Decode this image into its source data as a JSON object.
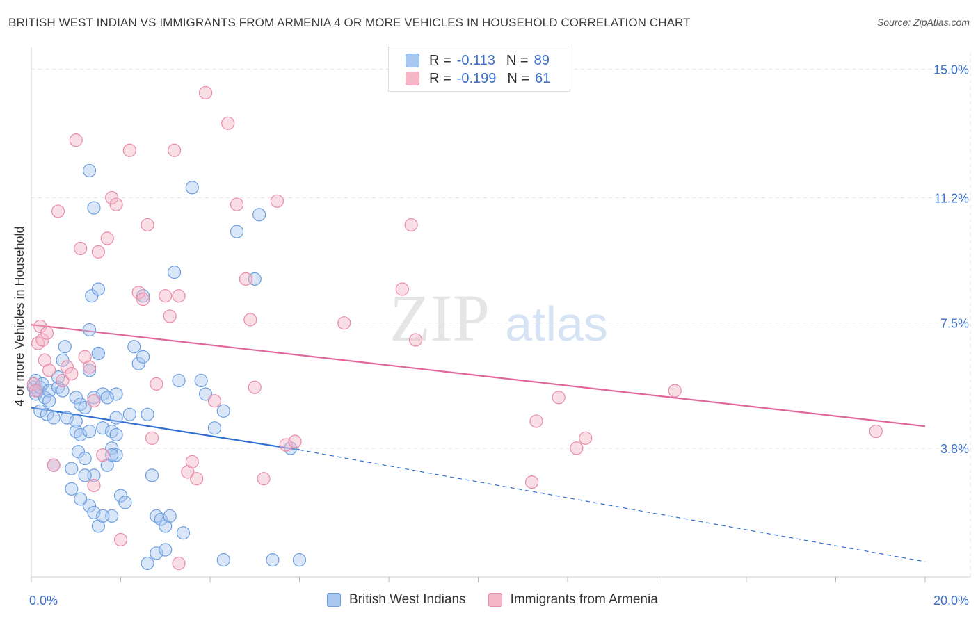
{
  "title": "BRITISH WEST INDIAN VS IMMIGRANTS FROM ARMENIA 4 OR MORE VEHICLES IN HOUSEHOLD CORRELATION CHART",
  "source": "Source: ZipAtlas.com",
  "watermark": {
    "zip": "ZIP",
    "atlas": "atlas"
  },
  "legend": {
    "r_label": "R =",
    "n_label": "N =",
    "series": [
      {
        "r": "-0.113",
        "n": "89"
      },
      {
        "r": "-0.199",
        "n": "61"
      }
    ]
  },
  "colors": {
    "blue_fill": "#a8c8f0",
    "blue_stroke": "#6b9ee0",
    "blue_line": "#2f6fd1",
    "pink_fill": "#f5b6c8",
    "pink_stroke": "#e98aa8",
    "pink_line": "#e0679a",
    "tick_label": "#3a70c9",
    "grid": "#e3e3e3"
  },
  "chart_data": {
    "type": "scatter",
    "title": "BRITISH WEST INDIAN VS IMMIGRANTS FROM ARMENIA 4 OR MORE VEHICLES IN HOUSEHOLD CORRELATION CHART",
    "xlabel": "",
    "ylabel": "4 or more Vehicles in Household",
    "xlim": [
      0,
      20
    ],
    "ylim": [
      0,
      15.5
    ],
    "x_tick_labels": [
      "0.0%",
      "20.0%"
    ],
    "y_ticks": [
      3.8,
      7.5,
      11.2,
      15.0
    ],
    "y_tick_labels": [
      "3.8%",
      "7.5%",
      "11.2%",
      "15.0%"
    ],
    "legend_position": "top-center",
    "series": [
      {
        "name": "British West Indians",
        "r": -0.113,
        "n": 89,
        "trend": {
          "x0": 0,
          "y0": 5.0,
          "x1": 6.0,
          "y1": 3.75,
          "dashed_to_x": 20,
          "dashed_to_y": 0.45
        },
        "points": [
          [
            0.05,
            5.6
          ],
          [
            0.1,
            5.4
          ],
          [
            0.1,
            5.8
          ],
          [
            0.15,
            5.5
          ],
          [
            0.2,
            4.9
          ],
          [
            0.2,
            5.6
          ],
          [
            0.25,
            5.7
          ],
          [
            0.3,
            5.3
          ],
          [
            0.35,
            4.8
          ],
          [
            0.4,
            5.5
          ],
          [
            0.4,
            5.2
          ],
          [
            0.5,
            4.7
          ],
          [
            0.6,
            5.6
          ],
          [
            0.6,
            5.9
          ],
          [
            0.7,
            5.5
          ],
          [
            0.7,
            6.4
          ],
          [
            0.75,
            6.8
          ],
          [
            0.5,
            3.3
          ],
          [
            0.8,
            4.7
          ],
          [
            0.9,
            3.2
          ],
          [
            0.9,
            2.6
          ],
          [
            1.0,
            5.3
          ],
          [
            1.0,
            4.3
          ],
          [
            1.0,
            4.6
          ],
          [
            1.05,
            3.7
          ],
          [
            1.1,
            4.2
          ],
          [
            1.1,
            5.1
          ],
          [
            1.2,
            5.0
          ],
          [
            1.2,
            3.5
          ],
          [
            1.3,
            4.3
          ],
          [
            1.3,
            6.1
          ],
          [
            1.3,
            7.3
          ],
          [
            1.4,
            3.0
          ],
          [
            1.4,
            5.3
          ],
          [
            1.5,
            6.6
          ],
          [
            1.6,
            4.4
          ],
          [
            1.7,
            3.3
          ],
          [
            1.8,
            4.3
          ],
          [
            1.8,
            1.8
          ],
          [
            1.8,
            3.8
          ],
          [
            1.9,
            3.6
          ],
          [
            1.9,
            5.4
          ],
          [
            1.2,
            3.0
          ],
          [
            1.3,
            2.1
          ],
          [
            1.4,
            1.9
          ],
          [
            1.5,
            1.5
          ],
          [
            1.6,
            1.8
          ],
          [
            1.1,
            2.3
          ],
          [
            1.3,
            12.0
          ],
          [
            1.4,
            10.9
          ],
          [
            1.35,
            8.3
          ],
          [
            1.5,
            8.5
          ],
          [
            1.5,
            6.6
          ],
          [
            1.6,
            5.4
          ],
          [
            1.7,
            5.3
          ],
          [
            1.9,
            4.2
          ],
          [
            1.8,
            3.6
          ],
          [
            1.9,
            4.7
          ],
          [
            2.0,
            2.4
          ],
          [
            2.1,
            2.2
          ],
          [
            2.2,
            4.8
          ],
          [
            2.3,
            6.8
          ],
          [
            2.4,
            6.3
          ],
          [
            2.5,
            8.3
          ],
          [
            2.5,
            6.5
          ],
          [
            2.6,
            4.8
          ],
          [
            2.7,
            3.0
          ],
          [
            2.8,
            1.8
          ],
          [
            2.9,
            1.7
          ],
          [
            3.0,
            1.5
          ],
          [
            3.1,
            1.8
          ],
          [
            3.2,
            9.0
          ],
          [
            3.3,
            5.8
          ],
          [
            3.4,
            1.3
          ],
          [
            3.6,
            11.5
          ],
          [
            3.8,
            5.8
          ],
          [
            3.9,
            5.4
          ],
          [
            2.6,
            0.4
          ],
          [
            2.8,
            0.7
          ],
          [
            3.0,
            0.8
          ],
          [
            4.1,
            4.4
          ],
          [
            4.3,
            4.9
          ],
          [
            4.6,
            10.2
          ],
          [
            4.3,
            0.5
          ],
          [
            5.0,
            8.8
          ],
          [
            5.1,
            10.7
          ],
          [
            5.4,
            0.5
          ],
          [
            5.8,
            3.8
          ],
          [
            6.0,
            0.5
          ]
        ]
      },
      {
        "name": "Immigrants from Armenia",
        "r": -0.199,
        "n": 61,
        "trend": {
          "x0": 0,
          "y0": 7.45,
          "x1": 20,
          "y1": 4.45
        },
        "points": [
          [
            0.05,
            5.7
          ],
          [
            0.1,
            5.5
          ],
          [
            0.15,
            6.9
          ],
          [
            0.2,
            7.4
          ],
          [
            0.25,
            7.0
          ],
          [
            0.3,
            6.4
          ],
          [
            0.35,
            7.2
          ],
          [
            0.4,
            6.1
          ],
          [
            0.5,
            3.3
          ],
          [
            0.6,
            10.8
          ],
          [
            0.7,
            5.8
          ],
          [
            0.8,
            6.2
          ],
          [
            0.9,
            6.0
          ],
          [
            1.0,
            12.9
          ],
          [
            1.1,
            9.7
          ],
          [
            1.2,
            6.5
          ],
          [
            1.3,
            6.2
          ],
          [
            1.4,
            5.2
          ],
          [
            1.5,
            9.6
          ],
          [
            1.6,
            3.6
          ],
          [
            1.7,
            10.0
          ],
          [
            1.8,
            11.2
          ],
          [
            1.9,
            11.0
          ],
          [
            1.4,
            2.7
          ],
          [
            2.2,
            12.6
          ],
          [
            2.4,
            8.4
          ],
          [
            2.5,
            8.2
          ],
          [
            2.6,
            10.4
          ],
          [
            2.7,
            4.1
          ],
          [
            2.8,
            5.7
          ],
          [
            3.0,
            8.3
          ],
          [
            3.1,
            7.7
          ],
          [
            3.2,
            12.6
          ],
          [
            3.3,
            8.3
          ],
          [
            3.5,
            3.1
          ],
          [
            3.6,
            3.4
          ],
          [
            3.7,
            2.9
          ],
          [
            3.9,
            14.3
          ],
          [
            4.1,
            5.2
          ],
          [
            4.4,
            13.4
          ],
          [
            4.6,
            11.0
          ],
          [
            4.8,
            8.8
          ],
          [
            4.9,
            7.6
          ],
          [
            5.0,
            5.6
          ],
          [
            5.2,
            2.9
          ],
          [
            5.5,
            11.1
          ],
          [
            5.7,
            3.9
          ],
          [
            5.9,
            4.0
          ],
          [
            7.0,
            7.5
          ],
          [
            8.3,
            8.5
          ],
          [
            8.5,
            10.4
          ],
          [
            8.6,
            7.0
          ],
          [
            11.2,
            2.8
          ],
          [
            11.3,
            4.6
          ],
          [
            11.8,
            5.3
          ],
          [
            12.4,
            4.1
          ],
          [
            12.2,
            3.8
          ],
          [
            14.4,
            5.5
          ],
          [
            18.9,
            4.3
          ],
          [
            2.0,
            1.1
          ],
          [
            3.3,
            0.4
          ]
        ]
      }
    ]
  }
}
